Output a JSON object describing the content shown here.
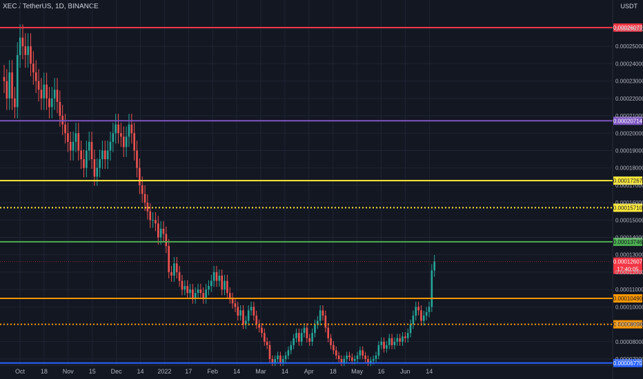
{
  "header": {
    "symbol": "XEC / TetherUS, 1D, BINANCE",
    "currency": "USDT"
  },
  "colors": {
    "bg": "#131722",
    "up": "#26a69a",
    "down": "#ef5350",
    "grid": "#1f2433"
  },
  "chart_data": {
    "type": "candlestick",
    "price_ticks": [
      "0.00026000",
      "0.00025000",
      "0.00024000",
      "0.00023000",
      "0.00022000",
      "0.00021000",
      "0.00020000",
      "0.00019000",
      "0.00018000",
      "0.00017000",
      "0.00016000",
      "0.00015000",
      "0.00014000",
      "0.00013000",
      "0.00012000",
      "0.00011000",
      "0.00010000",
      "0.00009000",
      "0.00008000",
      "0.00007000"
    ],
    "x_ticks": [
      "Oct",
      "18",
      "Nov",
      "15",
      "Dec",
      "14",
      "2022",
      "17",
      "Feb",
      "14",
      "Mar",
      "14",
      "Apr",
      "18",
      "May",
      "16",
      "Jun",
      "14"
    ],
    "levels": [
      {
        "value": 0.00026077,
        "label": "0.00026077",
        "color": "#f23645",
        "style": "solid"
      },
      {
        "value": 0.00020714,
        "label": "0.00020714",
        "color": "#7e57c2",
        "style": "solid"
      },
      {
        "value": 0.00017267,
        "label": "0.00017267",
        "color": "#ffeb3b",
        "style": "solid"
      },
      {
        "value": 0.0001571,
        "label": "0.00015710",
        "color": "#ffeb3b",
        "style": "dotted"
      },
      {
        "value": 0.00013746,
        "label": "0.00013746",
        "color": "#4caf50",
        "style": "solid"
      },
      {
        "value": 0.0001049,
        "label": "0.00010490",
        "color": "#ff9800",
        "style": "solid"
      },
      {
        "value": 8.998e-05,
        "label": "0.00008998",
        "color": "#ff9800",
        "style": "dotted"
      },
      {
        "value": 6.77e-05,
        "label": "0.00006770",
        "color": "#2962ff",
        "style": "solid"
      }
    ],
    "current_price": {
      "value": 0.00012607,
      "label": "0.00012607",
      "countdown": "17:40:05",
      "color": "#f23645"
    },
    "close": [
      0.00023,
      0.00022,
      0.000235,
      0.00022,
      0.000215,
      0.000245,
      0.000255,
      0.00025,
      0.000245,
      0.00025,
      0.00024,
      0.000235,
      0.00023,
      0.000225,
      0.00022,
      0.000228,
      0.00022,
      0.000215,
      0.00022,
      0.000225,
      0.000218,
      0.00021,
      0.000205,
      0.0002,
      0.000195,
      0.00019,
      0.000195,
      0.0002,
      0.00019,
      0.000185,
      0.00018,
      0.00019,
      0.000195,
      0.000185,
      0.000175,
      0.00018,
      0.000185,
      0.00019,
      0.000185,
      0.00019,
      0.000195,
      0.0002,
      0.000205,
      0.0002,
      0.000198,
      0.000192,
      0.000198,
      0.000205,
      0.0002,
      0.00019,
      0.00018,
      0.00017,
      0.000165,
      0.00016,
      0.000155,
      0.00015,
      0.00015,
      0.000148,
      0.00014,
      0.000145,
      0.000142,
      0.000135,
      0.00012,
      0.000118,
      0.000125,
      0.00012,
      0.000115,
      0.00011,
      0.000112,
      0.000108,
      0.00011,
      0.000105,
      0.000108,
      0.00011,
      0.000108,
      0.000105,
      0.00011,
      0.000112,
      0.000115,
      0.00012,
      0.000115,
      0.000118,
      0.00011,
      0.000115,
      0.000108,
      0.000105,
      0.000102,
      0.0001,
      9.5e-05,
      9.8e-05,
      9e-05,
      9.2e-05,
      9.8e-05,
      0.0001,
      9.5e-05,
      9e-05,
      8.8e-05,
      8.5e-05,
      8e-05,
      7.8e-05,
      7e-05,
      6.8e-05,
      7e-05,
      7.2e-05,
      6.8e-05,
      7e-05,
      7.2e-05,
      7.5e-05,
      7.8e-05,
      8.2e-05,
      8.5e-05,
      8e-05,
      8.5e-05,
      8.8e-05,
      8.2e-05,
      8e-05,
      8.5e-05,
      9e-05,
      9.2e-05,
      9.8e-05,
      9.5e-05,
      8.8e-05,
      8.2e-05,
      7.8e-05,
      7.5e-05,
      7.2e-05,
      7e-05,
      6.8e-05,
      7e-05,
      7.2e-05,
      7.1e-05,
      6.9e-05,
      7e-05,
      7.2e-05,
      7.5e-05,
      7.2e-05,
      7e-05,
      6.8e-05,
      6.9e-05,
      7e-05,
      7.2e-05,
      7.8e-05,
      8e-05,
      7.6e-05,
      7.8e-05,
      8.2e-05,
      7.8e-05,
      8e-05,
      8.2e-05,
      8e-05,
      8.3e-05,
      8.2e-05,
      8.5e-05,
      9e-05,
      9.5e-05,
      0.0001,
      9.8e-05,
      9.2e-05,
      9.5e-05,
      9.7e-05,
      0.0001,
      0.000121,
      0.00012607
    ]
  }
}
